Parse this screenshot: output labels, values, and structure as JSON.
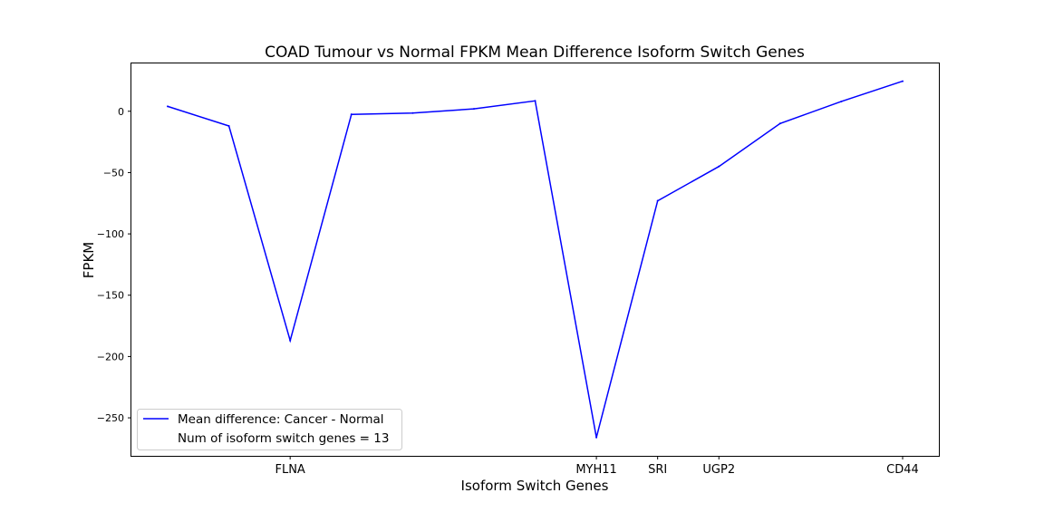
{
  "chart_data": {
    "type": "line",
    "title": "COAD Tumour vs Normal FPKM Mean Difference Isoform Switch Genes",
    "xlabel": "Isoform Switch Genes",
    "ylabel": "FPKM",
    "x": [
      0,
      1,
      2,
      3,
      4,
      5,
      6,
      7,
      8,
      9,
      10,
      11,
      12
    ],
    "x_tick_positions": [
      2,
      7,
      8,
      9,
      12
    ],
    "x_tick_labels": [
      "FLNA",
      "MYH11",
      "SRI",
      "UGP2",
      "CD44"
    ],
    "ylim": [
      -281,
      39
    ],
    "y_ticks": [
      0,
      -50,
      -100,
      -150,
      -200,
      -250
    ],
    "y_tick_labels": [
      "0",
      "−50",
      "−100",
      "−150",
      "−200",
      "−250"
    ],
    "series": [
      {
        "name": "Mean difference: Cancer - Normal",
        "color": "#0000ff",
        "values": [
          4,
          -12,
          -187,
          -2.5,
          -1.5,
          2,
          8.5,
          -266,
          -73,
          -45,
          -10,
          8,
          24.5
        ]
      }
    ],
    "legend": {
      "placement": "lower-left",
      "entries": [
        "Mean difference: Cancer - Normal",
        "Num of isoform switch genes = 13"
      ]
    },
    "grid": false
  }
}
